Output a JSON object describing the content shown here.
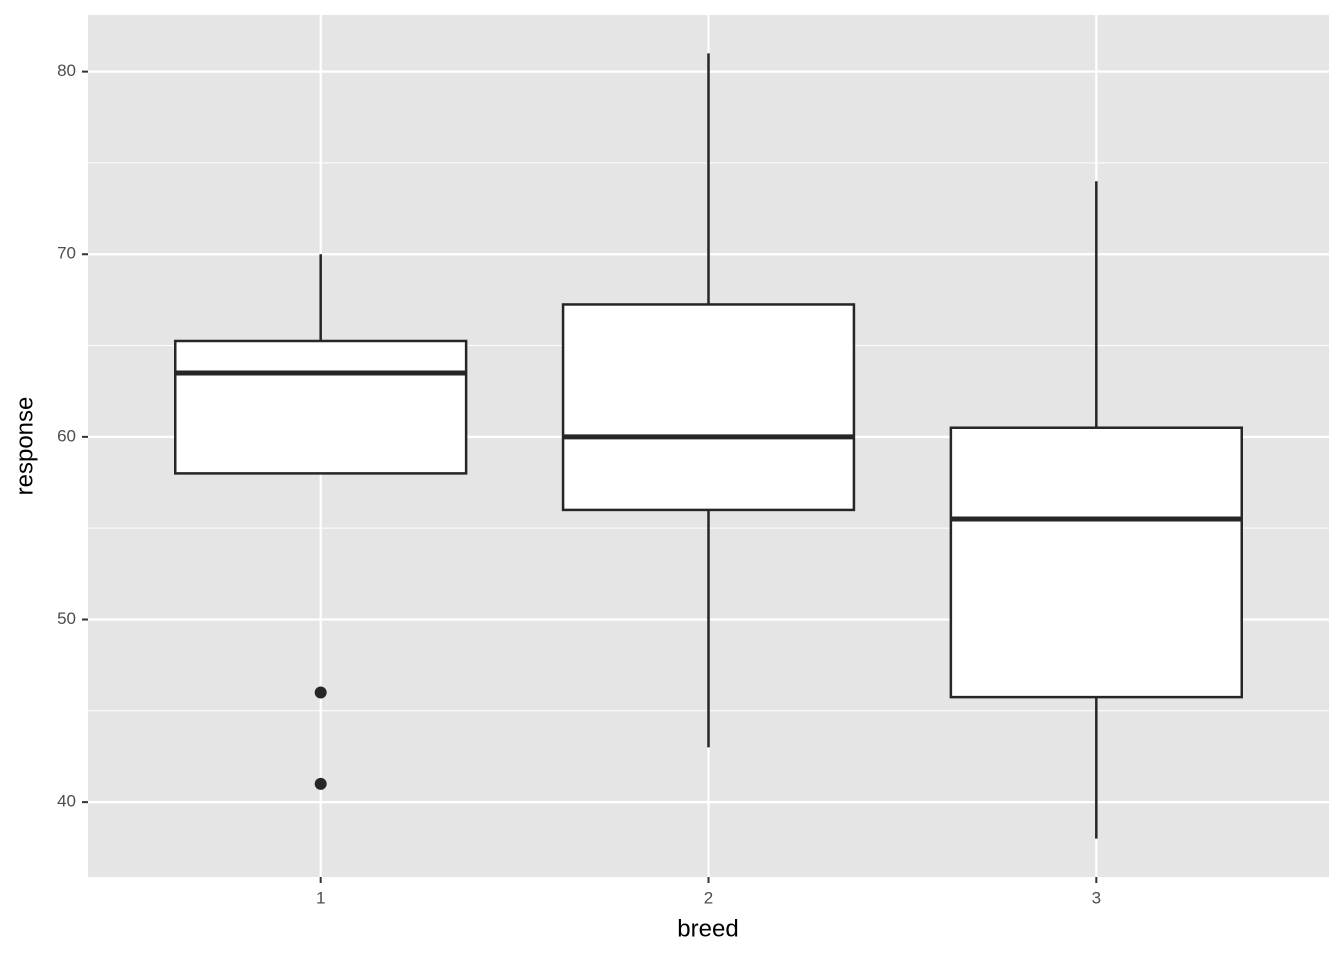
{
  "chart_data": {
    "type": "box",
    "x_label": "breed",
    "y_label": "response",
    "categories": [
      "1",
      "2",
      "3"
    ],
    "boxes": [
      {
        "min": 58,
        "q1": 58,
        "median": 63.5,
        "q3": 65.25,
        "max": 70,
        "outliers": [
          46,
          41
        ]
      },
      {
        "min": 43,
        "q1": 56,
        "median": 60,
        "q3": 67.25,
        "max": 81,
        "outliers": []
      },
      {
        "min": 38,
        "q1": 45.75,
        "median": 55.5,
        "q3": 60.5,
        "max": 74,
        "outliers": []
      }
    ],
    "ylim": [
      35.9,
      83.1
    ],
    "yticks": [
      40,
      50,
      60,
      70,
      80
    ],
    "minor_yticks": [
      45,
      55,
      65,
      75
    ],
    "grid": true,
    "color": "#ffffff",
    "line_color": "#262626",
    "panel_color": "#e5e5e5"
  }
}
